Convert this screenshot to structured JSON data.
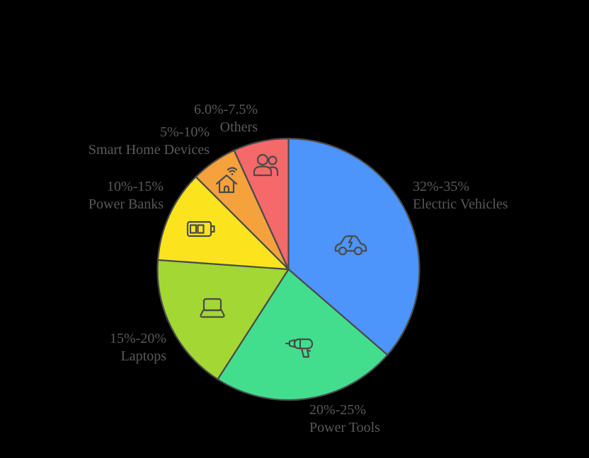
{
  "background_color": "#000000",
  "chart_data": {
    "type": "pie",
    "title": "",
    "legend_position": "none",
    "grid": false,
    "start_angle_deg": 0,
    "direction": "clockwise",
    "stroke_color": "#4A4A4A",
    "label_color": "#595959",
    "slices": [
      {
        "name": "Electric Vehicles",
        "range": "32%-35%",
        "value": 32,
        "color": "#4D94FB",
        "icon": "electric-car-icon"
      },
      {
        "name": "Power Tools",
        "range": "20%-25%",
        "value": 20,
        "color": "#43DE8D",
        "icon": "drill-icon"
      },
      {
        "name": "Laptops",
        "range": "15%-20%",
        "value": 15,
        "color": "#A3D733",
        "icon": "laptop-icon"
      },
      {
        "name": "Power Banks",
        "range": "10%-15%",
        "value": 10,
        "color": "#FBE41D",
        "icon": "battery-icon"
      },
      {
        "name": "Smart Home Devices",
        "range": "5%-10%",
        "value": 5,
        "color": "#F5A23C",
        "icon": "smart-home-icon"
      },
      {
        "name": "Others",
        "range": "6.0%-7.5%",
        "value": 6,
        "color": "#F5696B",
        "icon": "people-icon"
      }
    ]
  }
}
